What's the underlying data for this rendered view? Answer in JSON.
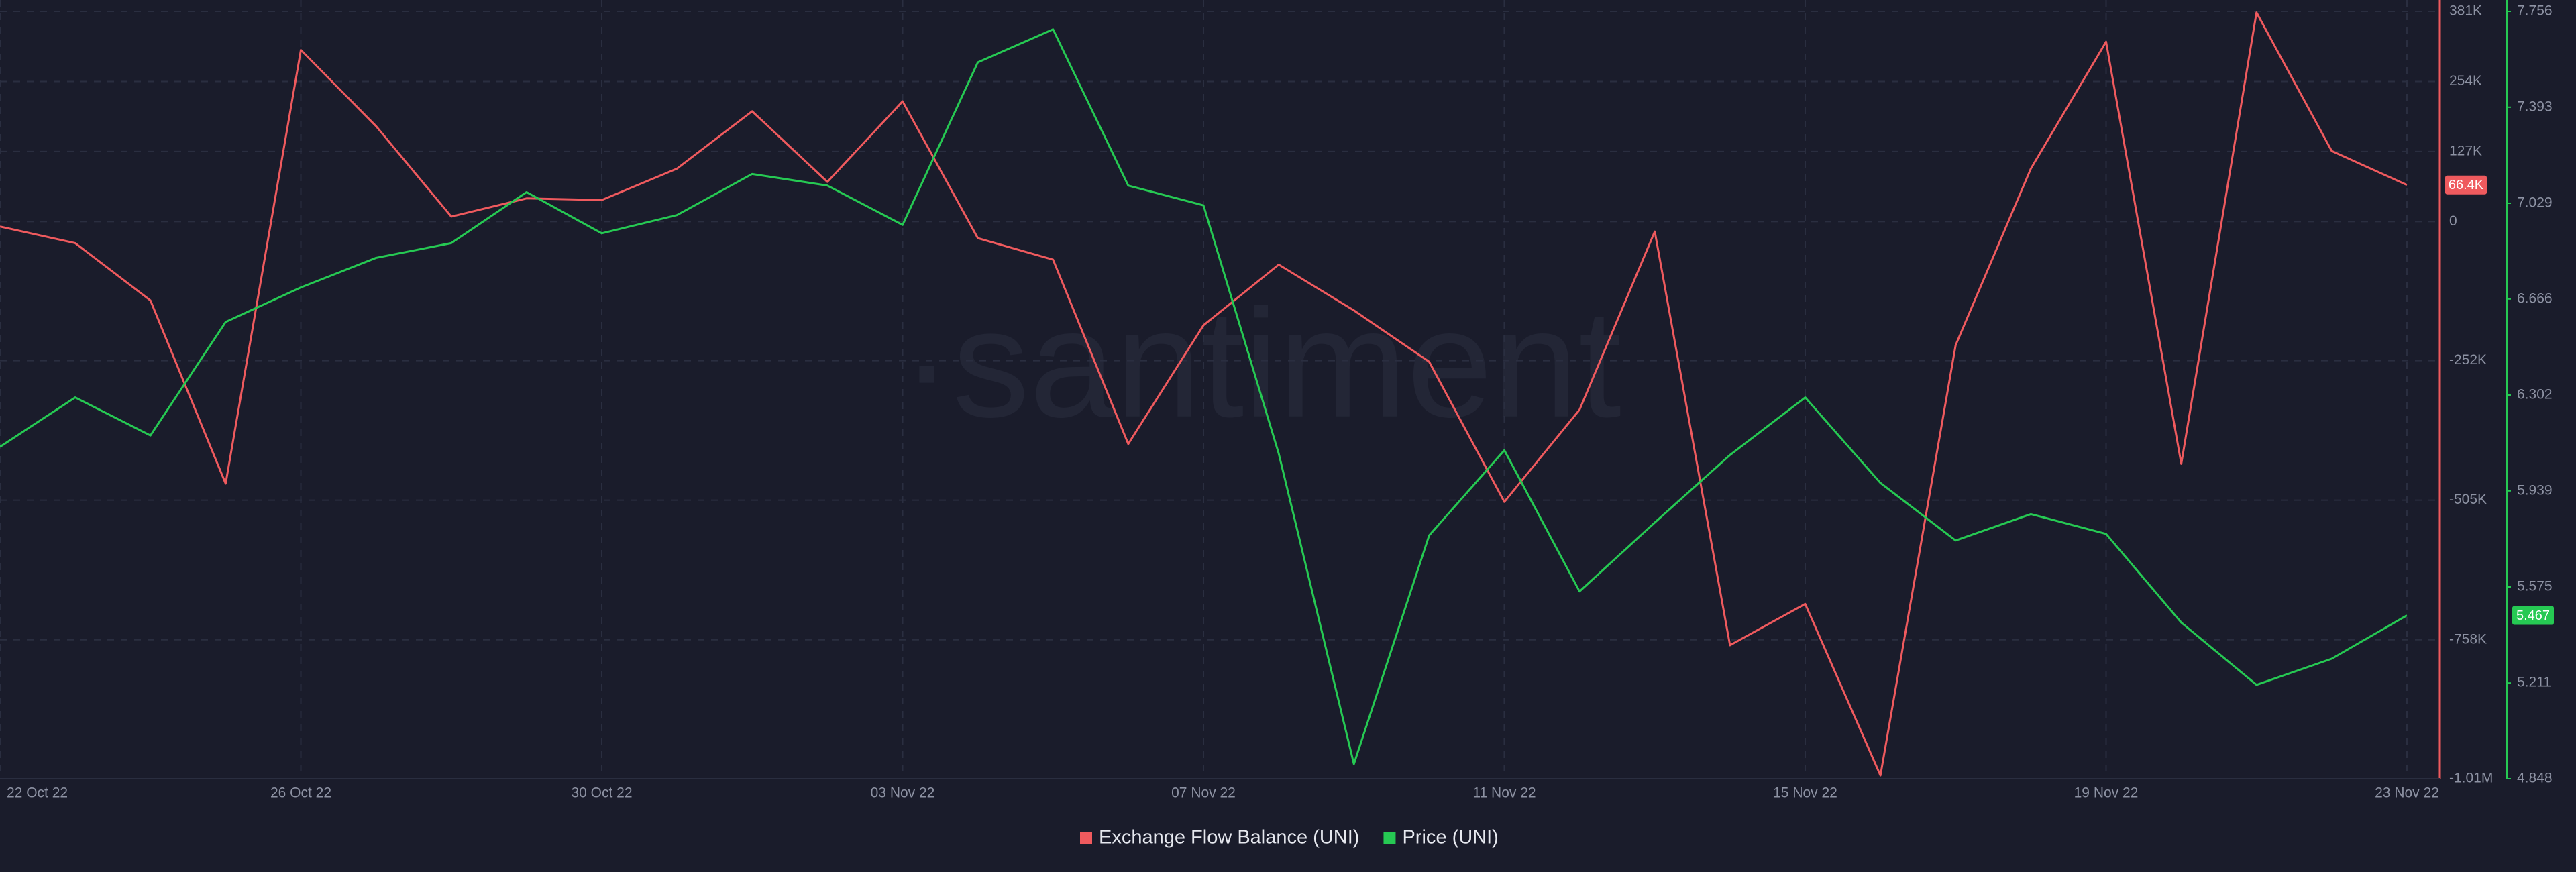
{
  "chart_data": {
    "type": "line",
    "watermark": "·santiment",
    "categories": [
      "22 Oct 22",
      null,
      null,
      null,
      "26 Oct 22",
      null,
      null,
      null,
      "30 Oct 22",
      null,
      null,
      null,
      "03 Nov 22",
      null,
      null,
      null,
      "07 Nov 22",
      null,
      null,
      null,
      "11 Nov 22",
      null,
      null,
      null,
      "15 Nov 22",
      null,
      null,
      null,
      "19 Nov 22",
      null,
      null,
      null,
      "23 Nov 22"
    ],
    "series": [
      {
        "name": "Exchange Flow Balance (UNI)",
        "color": "#ef5a5e",
        "axis": "y",
        "values": [
          -9000,
          -39000,
          -143000,
          -475000,
          311000,
          173000,
          9000,
          42000,
          39000,
          96000,
          200000,
          72000,
          218000,
          -30000,
          -69000,
          -403000,
          -188000,
          -78000,
          -161000,
          -254000,
          -508000,
          -341000,
          -18000,
          -768000,
          -693000,
          -1004000,
          -224000,
          96000,
          326000,
          -439000,
          379000,
          128000,
          66400
        ],
        "value_labels": [
          null,
          null,
          null,
          null,
          null,
          null,
          null,
          null,
          null,
          null,
          null,
          null,
          null,
          null,
          null,
          null,
          null,
          null,
          null,
          null,
          null,
          null,
          null,
          null,
          null,
          null,
          null,
          null,
          null,
          null,
          null,
          null,
          "66.4K"
        ]
      },
      {
        "name": "Price (UNI)",
        "color": "#26c953",
        "axis": "y2",
        "values": [
          6.106,
          6.293,
          6.149,
          6.579,
          6.71,
          6.822,
          6.878,
          7.071,
          6.915,
          6.984,
          7.14,
          7.096,
          6.947,
          7.563,
          7.688,
          7.096,
          7.021,
          6.081,
          4.904,
          5.77,
          6.093,
          5.558,
          5.819,
          6.075,
          6.293,
          5.969,
          5.751,
          5.851,
          5.776,
          5.44,
          5.204,
          5.303,
          5.467
        ]
      }
    ],
    "ylim": [
      -1010000,
      381000
    ],
    "yticks": [
      {
        "value": 381000,
        "label": "381K"
      },
      {
        "value": 254000,
        "label": "254K"
      },
      {
        "value": 127000,
        "label": "127K"
      },
      0,
      {
        "value": -252000,
        "label": "-252K"
      },
      {
        "value": -505000,
        "label": "-505K"
      },
      {
        "value": -758000,
        "label": "-758K"
      },
      {
        "value": -1010000,
        "label": "-1.01M"
      }
    ],
    "y2lim": [
      4.848,
      7.756
    ],
    "y2ticks": [
      7.756,
      7.393,
      7.029,
      6.666,
      6.302,
      5.939,
      5.575,
      5.211,
      4.848
    ],
    "grid": true
  }
}
